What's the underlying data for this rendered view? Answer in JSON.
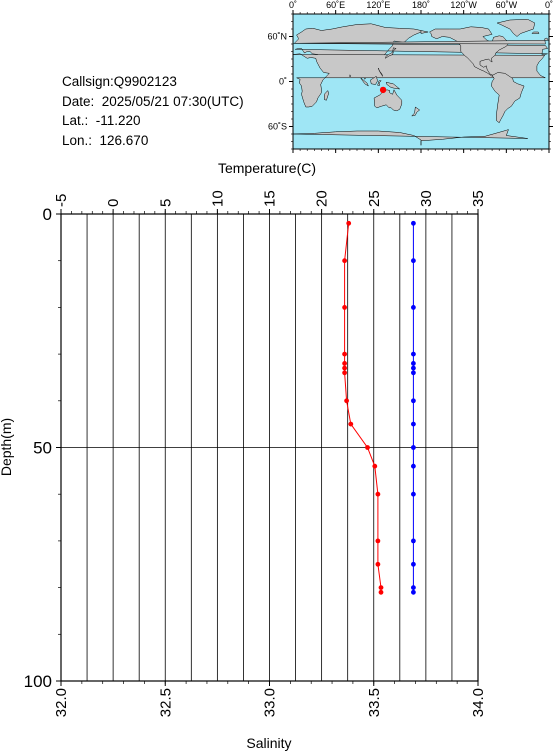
{
  "info": {
    "callsign": "Callsign:Q9902123",
    "date": "Date:  2025/05/21 07:30(UTC)",
    "lat": "Lat.:  -11.220",
    "lon": "Lon.:  126.670"
  },
  "map": {
    "top_ticks": [
      "0˚",
      "60˚E",
      "120˚E",
      "180˚",
      "120˚W",
      "60˚W",
      "0˚"
    ],
    "lat_ticks": [
      "60˚N",
      "0˚",
      "60˚S"
    ],
    "ocean_color": "#9fe6f5",
    "land_color": "#c8c8c8",
    "marker_color": "#ff0000",
    "marker": {
      "lat": -11.22,
      "lon": 126.67
    }
  },
  "chart_data": {
    "type": "line",
    "temperature_axis": {
      "label": "Temperature(C)",
      "range": [
        -5,
        35
      ],
      "ticks": [
        "-5",
        "0",
        "5",
        "10",
        "15",
        "20",
        "25",
        "30",
        "35"
      ]
    },
    "salinity_axis": {
      "label": "Salinity",
      "range": [
        32.0,
        34.0
      ],
      "ticks": [
        "32.0",
        "32.5",
        "33.0",
        "33.5",
        "34.0"
      ]
    },
    "depth_axis": {
      "label": "Depth(m)",
      "range": [
        0,
        100
      ],
      "ticks": [
        "0",
        "50",
        "100"
      ]
    },
    "series": [
      {
        "quantity": "temperature",
        "color": "#ff0000",
        "points": [
          [
            22.6,
            2
          ],
          [
            22.2,
            10
          ],
          [
            22.2,
            20
          ],
          [
            22.2,
            30
          ],
          [
            22.2,
            32
          ],
          [
            22.2,
            33
          ],
          [
            22.2,
            34
          ],
          [
            22.4,
            40
          ],
          [
            22.8,
            45
          ],
          [
            24.4,
            50
          ],
          [
            25.1,
            54
          ],
          [
            25.4,
            60
          ],
          [
            25.4,
            70
          ],
          [
            25.4,
            75
          ],
          [
            25.7,
            80
          ],
          [
            25.7,
            81
          ]
        ]
      },
      {
        "quantity": "salinity",
        "color": "#0000ff",
        "points": [
          [
            33.69,
            2
          ],
          [
            33.69,
            10
          ],
          [
            33.69,
            20
          ],
          [
            33.69,
            30
          ],
          [
            33.69,
            32
          ],
          [
            33.69,
            33
          ],
          [
            33.69,
            34
          ],
          [
            33.69,
            40
          ],
          [
            33.69,
            45
          ],
          [
            33.69,
            50
          ],
          [
            33.69,
            54
          ],
          [
            33.69,
            60
          ],
          [
            33.69,
            70
          ],
          [
            33.69,
            75
          ],
          [
            33.69,
            80
          ],
          [
            33.69,
            81
          ]
        ]
      }
    ]
  }
}
